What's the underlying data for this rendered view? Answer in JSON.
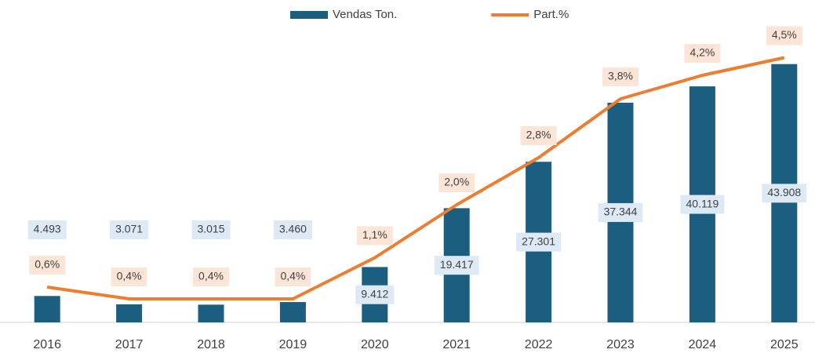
{
  "chart_data": {
    "type": "bar",
    "categories": [
      "2016",
      "2017",
      "2018",
      "2019",
      "2020",
      "2021",
      "2022",
      "2023",
      "2024",
      "2025"
    ],
    "series": [
      {
        "name": "Vendas Ton.",
        "type": "bar",
        "color": "#1b5e80",
        "values": [
          4493,
          3071,
          3015,
          3460,
          9412,
          19417,
          27301,
          37344,
          40119,
          43908
        ],
        "value_labels": [
          "4.493",
          "3.071",
          "3.015",
          "3.460",
          "9.412",
          "19.417",
          "27.301",
          "37.344",
          "40.119",
          "43.908"
        ]
      },
      {
        "name": "Part.%",
        "type": "line",
        "axis": "y2",
        "color": "#ed7d31",
        "values": [
          0.6,
          0.4,
          0.4,
          0.4,
          1.1,
          2.0,
          2.8,
          3.8,
          4.2,
          4.5
        ],
        "value_labels": [
          "0,6%",
          "0,4%",
          "0,4%",
          "0,4%",
          "1,1%",
          "2,0%",
          "2,8%",
          "3,8%",
          "4,2%",
          "4,5%"
        ]
      }
    ],
    "ylim": [
      0,
      50000
    ],
    "y2lim": [
      0,
      5
    ],
    "legend": "top"
  }
}
